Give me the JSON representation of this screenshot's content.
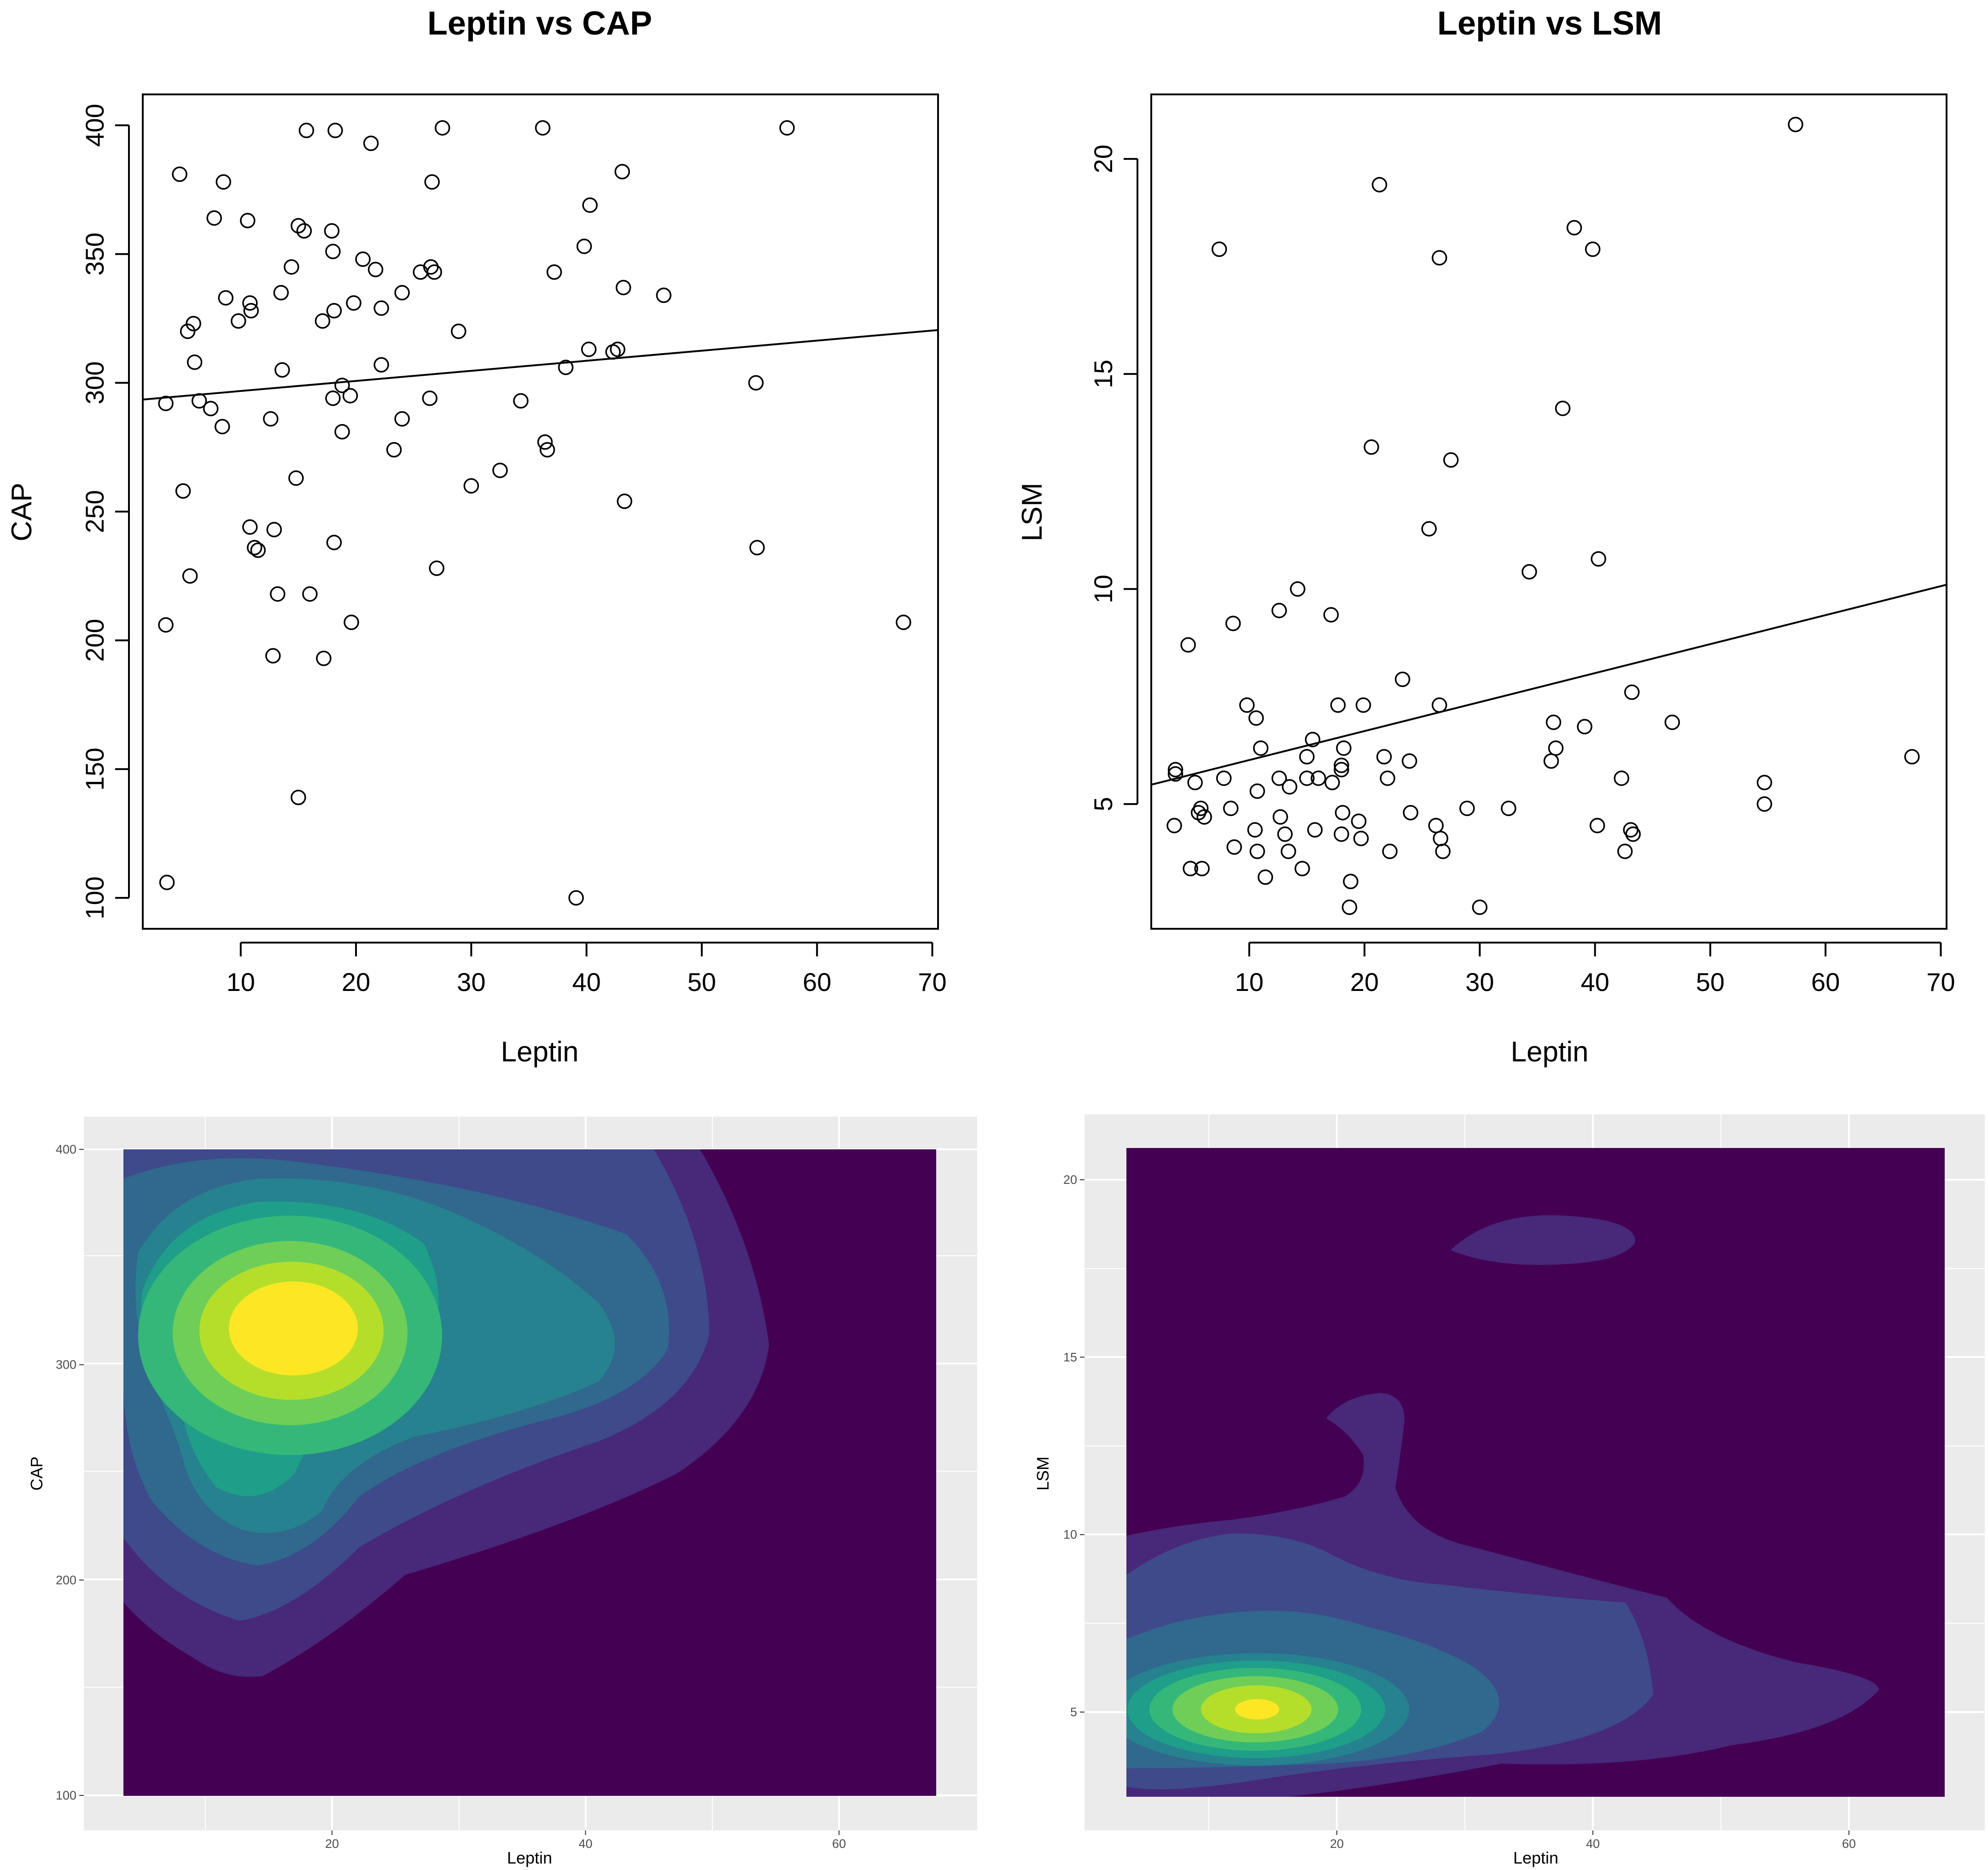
{
  "chart_data": [
    {
      "type": "scatter",
      "title": "Leptin vs CAP",
      "xlabel": "Leptin",
      "ylabel": "CAP",
      "xlim": [
        1.5,
        70.5
      ],
      "ylim": [
        88,
        412
      ],
      "xticks": [
        "10",
        "20",
        "30",
        "40",
        "50",
        "60",
        "70"
      ],
      "yticks": [
        "100",
        "150",
        "200",
        "250",
        "300",
        "350",
        "400"
      ],
      "regression_line": {
        "x": [
          1.5,
          70.5
        ],
        "y": [
          293.5,
          320.5
        ]
      },
      "points": [
        [
          4.7,
          381
        ],
        [
          8.5,
          378
        ],
        [
          7.7,
          364
        ],
        [
          10.6,
          363
        ],
        [
          5.4,
          320
        ],
        [
          5.9,
          323
        ],
        [
          6.0,
          308
        ],
        [
          6.4,
          293
        ],
        [
          3.5,
          292
        ],
        [
          7.4,
          290
        ],
        [
          8.4,
          283
        ],
        [
          8.7,
          333
        ],
        [
          9.8,
          324
        ],
        [
          10.8,
          331
        ],
        [
          10.9,
          328
        ],
        [
          12.6,
          286
        ],
        [
          13.5,
          335
        ],
        [
          13.6,
          305
        ],
        [
          14.4,
          345
        ],
        [
          15.0,
          361
        ],
        [
          15.5,
          359
        ],
        [
          15.7,
          398
        ],
        [
          17.1,
          324
        ],
        [
          18.0,
          351
        ],
        [
          17.9,
          359
        ],
        [
          18.1,
          328
        ],
        [
          18.2,
          398
        ],
        [
          18.8,
          299
        ],
        [
          18.0,
          294
        ],
        [
          18.8,
          281
        ],
        [
          19.5,
          295
        ],
        [
          19.8,
          331
        ],
        [
          20.6,
          348
        ],
        [
          21.3,
          393
        ],
        [
          21.7,
          344
        ],
        [
          22.2,
          329
        ],
        [
          22.2,
          307
        ],
        [
          23.3,
          274
        ],
        [
          24.0,
          286
        ],
        [
          24.0,
          335
        ],
        [
          25.6,
          343
        ],
        [
          26.4,
          294
        ],
        [
          26.5,
          345
        ],
        [
          26.6,
          378
        ],
        [
          26.8,
          343
        ],
        [
          27.5,
          399
        ],
        [
          28.9,
          320
        ],
        [
          30.0,
          260
        ],
        [
          32.5,
          266
        ],
        [
          34.3,
          293
        ],
        [
          36.2,
          399
        ],
        [
          36.4,
          277
        ],
        [
          36.6,
          274
        ],
        [
          37.2,
          343
        ],
        [
          38.2,
          306
        ],
        [
          39.8,
          353
        ],
        [
          40.2,
          313
        ],
        [
          40.3,
          369
        ],
        [
          42.3,
          312
        ],
        [
          42.7,
          313
        ],
        [
          43.1,
          382
        ],
        [
          43.2,
          337
        ],
        [
          43.3,
          254
        ],
        [
          46.7,
          334
        ],
        [
          54.7,
          300
        ],
        [
          54.8,
          236
        ],
        [
          57.4,
          399
        ],
        [
          67.5,
          207
        ],
        [
          5.0,
          258
        ],
        [
          5.6,
          225
        ],
        [
          3.5,
          206
        ],
        [
          3.6,
          106
        ],
        [
          10.8,
          244
        ],
        [
          11.2,
          236
        ],
        [
          11.5,
          235
        ],
        [
          12.9,
          243
        ],
        [
          13.2,
          218
        ],
        [
          12.8,
          194
        ],
        [
          14.8,
          263
        ],
        [
          15.0,
          139
        ],
        [
          16.0,
          218
        ],
        [
          17.2,
          193
        ],
        [
          18.1,
          238
        ],
        [
          19.6,
          207
        ],
        [
          27.0,
          228
        ],
        [
          39.1,
          100
        ]
      ]
    },
    {
      "type": "scatter",
      "title": "Leptin vs LSM",
      "xlabel": "Leptin",
      "ylabel": "LSM",
      "xlim": [
        1.5,
        70.5
      ],
      "ylim": [
        2.1,
        21.5
      ],
      "xticks": [
        "10",
        "20",
        "30",
        "40",
        "50",
        "60",
        "70"
      ],
      "yticks": [
        "5",
        "10",
        "15",
        "20"
      ],
      "regression_line": {
        "x": [
          1.5,
          70.5
        ],
        "y": [
          5.45,
          10.1
        ]
      },
      "points": [
        [
          4.7,
          8.7
        ],
        [
          7.4,
          17.9
        ],
        [
          8.6,
          9.2
        ],
        [
          9.8,
          7.3
        ],
        [
          10.6,
          7.0
        ],
        [
          11.0,
          6.3
        ],
        [
          12.6,
          9.5
        ],
        [
          14.2,
          10.0
        ],
        [
          15.0,
          6.1
        ],
        [
          15.5,
          6.5
        ],
        [
          17.1,
          9.4
        ],
        [
          17.7,
          7.3
        ],
        [
          18.0,
          5.9
        ],
        [
          18.0,
          5.8
        ],
        [
          18.2,
          6.3
        ],
        [
          19.9,
          7.3
        ],
        [
          20.6,
          13.3
        ],
        [
          21.3,
          19.4
        ],
        [
          21.7,
          6.1
        ],
        [
          22.0,
          5.6
        ],
        [
          23.3,
          7.9
        ],
        [
          23.9,
          6.0
        ],
        [
          25.6,
          11.4
        ],
        [
          26.5,
          17.7
        ],
        [
          26.5,
          7.3
        ],
        [
          27.5,
          13.0
        ],
        [
          34.3,
          10.4
        ],
        [
          36.2,
          6.0
        ],
        [
          36.4,
          6.9
        ],
        [
          36.6,
          6.3
        ],
        [
          37.2,
          14.2
        ],
        [
          38.2,
          18.4
        ],
        [
          39.1,
          6.8
        ],
        [
          39.8,
          17.9
        ],
        [
          40.3,
          10.7
        ],
        [
          42.3,
          5.6
        ],
        [
          43.2,
          7.6
        ],
        [
          46.7,
          6.9
        ],
        [
          54.7,
          5.5
        ],
        [
          54.7,
          5.0
        ],
        [
          57.4,
          20.8
        ],
        [
          67.5,
          6.1
        ],
        [
          3.6,
          5.7
        ],
        [
          3.6,
          5.8
        ],
        [
          3.5,
          4.5
        ],
        [
          4.9,
          3.5
        ],
        [
          5.3,
          5.5
        ],
        [
          5.6,
          4.8
        ],
        [
          5.8,
          4.9
        ],
        [
          5.9,
          3.5
        ],
        [
          6.1,
          4.7
        ],
        [
          7.8,
          5.6
        ],
        [
          8.4,
          4.9
        ],
        [
          8.7,
          4.0
        ],
        [
          10.5,
          4.4
        ],
        [
          10.7,
          5.3
        ],
        [
          10.7,
          3.9
        ],
        [
          11.4,
          3.3
        ],
        [
          12.6,
          5.6
        ],
        [
          12.7,
          4.7
        ],
        [
          13.1,
          4.3
        ],
        [
          13.4,
          3.9
        ],
        [
          13.5,
          5.4
        ],
        [
          14.6,
          3.5
        ],
        [
          15.0,
          5.6
        ],
        [
          15.7,
          4.4
        ],
        [
          16.0,
          5.6
        ],
        [
          17.2,
          5.5
        ],
        [
          18.0,
          4.3
        ],
        [
          18.1,
          4.8
        ],
        [
          18.7,
          2.6
        ],
        [
          18.8,
          3.2
        ],
        [
          19.5,
          4.6
        ],
        [
          19.7,
          4.2
        ],
        [
          22.2,
          3.9
        ],
        [
          24.0,
          4.8
        ],
        [
          26.2,
          4.5
        ],
        [
          26.6,
          4.2
        ],
        [
          26.8,
          3.9
        ],
        [
          28.9,
          4.9
        ],
        [
          30.0,
          2.6
        ],
        [
          32.5,
          4.9
        ],
        [
          40.2,
          4.5
        ],
        [
          42.6,
          3.9
        ],
        [
          43.1,
          4.4
        ],
        [
          43.3,
          4.3
        ]
      ]
    },
    {
      "type": "heatmap",
      "subtype": "2d-density-filled-contour",
      "palette": [
        "#440154",
        "#482878",
        "#3e4a89",
        "#31688e",
        "#26828e",
        "#1f9e89",
        "#35b779",
        "#6ece58",
        "#b5de2b",
        "#fde725"
      ],
      "xlabel": "Leptin",
      "ylabel": "CAP",
      "xlim": [
        3.5,
        67.5
      ],
      "ylim": [
        100,
        400
      ],
      "xticks": [
        "20",
        "40",
        "60"
      ],
      "yticks": [
        "100",
        "200",
        "300",
        "400"
      ],
      "peak": {
        "x": 16.7,
        "y": 332
      }
    },
    {
      "type": "heatmap",
      "subtype": "2d-density-filled-contour",
      "palette": [
        "#440154",
        "#482878",
        "#3e4a89",
        "#31688e",
        "#26828e",
        "#1f9e89",
        "#35b779",
        "#6ece58",
        "#b5de2b",
        "#fde725"
      ],
      "xlabel": "Leptin",
      "ylabel": "LSM",
      "xlim": [
        3.5,
        67.5
      ],
      "ylim": [
        2.6,
        20.8
      ],
      "xticks": [
        "20",
        "40",
        "60"
      ],
      "yticks": [
        "5",
        "10",
        "15",
        "20"
      ],
      "peak": {
        "x": 14.0,
        "y": 5.0
      }
    }
  ]
}
